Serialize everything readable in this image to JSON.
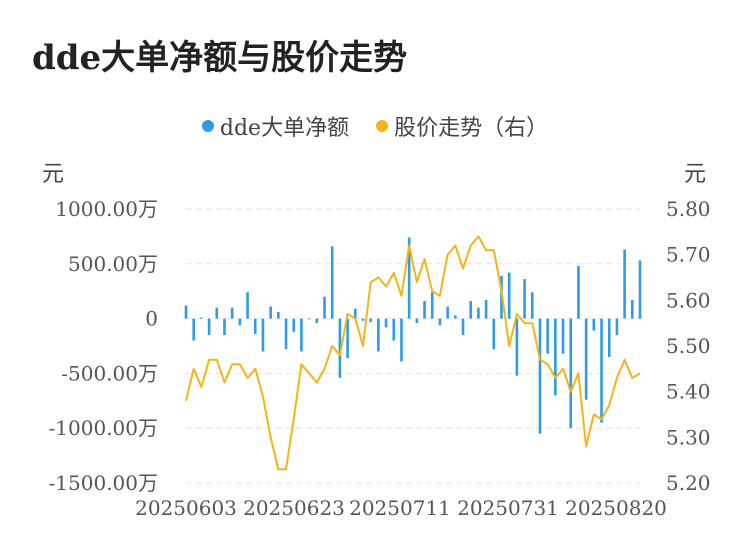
{
  "title": "dde大单净额与股价走势",
  "legend": [
    {
      "label": "dde大单净额",
      "color": "#2f9be3"
    },
    {
      "label": "股价走势（右）",
      "color": "#f4b41a"
    }
  ],
  "unit_left": "元",
  "unit_right": "元",
  "chart_data": {
    "type": "bar+line",
    "title": "dde大单净额与股价走势",
    "x_tick_labels": [
      "20250603",
      "20250623",
      "20250711",
      "20250731",
      "20250820"
    ],
    "y_left": {
      "ticks": [
        1000,
        500,
        0,
        -500,
        -1000,
        -1500
      ],
      "tick_labels": [
        "1000.00万",
        "500.00万",
        "0",
        "-500.00万",
        "-1000.00万",
        "-1500.00万"
      ],
      "range": [
        -1500,
        1000
      ],
      "unit": "万元"
    },
    "y_right": {
      "ticks": [
        5.8,
        5.7,
        5.6,
        5.5,
        5.4,
        5.3,
        5.2
      ],
      "tick_labels": [
        "5.80",
        "5.70",
        "5.60",
        "5.50",
        "5.40",
        "5.30",
        "5.20"
      ],
      "range": [
        5.2,
        5.8
      ]
    },
    "grid": true,
    "legend_position": "top-center",
    "series": [
      {
        "name": "dde大单净额",
        "type": "bar",
        "color": "#2f9be3",
        "values": [
          120,
          -200,
          10,
          -150,
          100,
          -150,
          100,
          -60,
          240,
          -140,
          -300,
          110,
          60,
          -280,
          -120,
          -300,
          0,
          -40,
          200,
          660,
          -540,
          -360,
          90,
          -20,
          -30,
          -300,
          -80,
          -200,
          -390,
          740,
          -40,
          160,
          240,
          -60,
          110,
          30,
          -150,
          160,
          100,
          170,
          -280,
          390,
          420,
          -520,
          360,
          240,
          -1050,
          -320,
          -700,
          -320,
          -1000,
          480,
          -740,
          -110,
          -950,
          -350,
          -150,
          630,
          170,
          530
        ]
      },
      {
        "name": "股价走势（右）",
        "type": "line",
        "color": "#f4b41a",
        "values": [
          5.38,
          5.45,
          5.41,
          5.47,
          5.47,
          5.42,
          5.46,
          5.46,
          5.43,
          5.45,
          5.39,
          5.3,
          5.23,
          5.23,
          5.34,
          5.46,
          5.44,
          5.42,
          5.45,
          5.5,
          5.48,
          5.57,
          5.56,
          5.5,
          5.64,
          5.65,
          5.63,
          5.66,
          5.61,
          5.72,
          5.64,
          5.69,
          5.62,
          5.61,
          5.7,
          5.72,
          5.67,
          5.72,
          5.74,
          5.71,
          5.71,
          5.62,
          5.5,
          5.57,
          5.55,
          5.55,
          5.47,
          5.46,
          5.43,
          5.45,
          5.4,
          5.44,
          5.28,
          5.35,
          5.34,
          5.37,
          5.43,
          5.47,
          5.43,
          5.44
        ]
      }
    ]
  }
}
